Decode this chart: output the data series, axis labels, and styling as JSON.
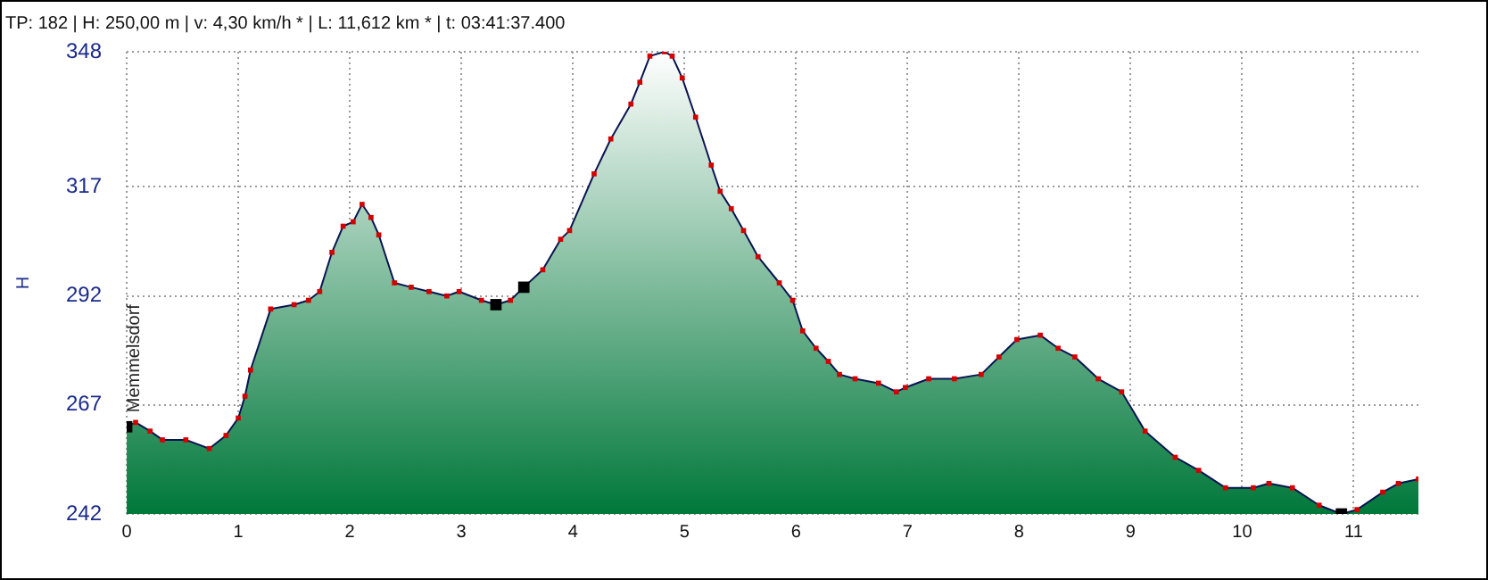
{
  "chart_data": {
    "type": "area",
    "title": "TP: 182 | H: 250,00 m | v: 4,30 km/h * | L: 11,612 km * | t: 03:41:37.400",
    "ylabel": "H",
    "xlim": [
      0,
      11.58
    ],
    "xticks": [
      0,
      1,
      2,
      3,
      4,
      5,
      6,
      7,
      8,
      9,
      10,
      11
    ],
    "ylim": [
      242,
      348
    ],
    "yticks": [
      242,
      267,
      292,
      317,
      348
    ],
    "grid": true,
    "marker": "square",
    "legend": false,
    "annotations": [
      {
        "text": "Memmelsdorf",
        "x": 0,
        "y": 262
      }
    ],
    "series": [
      {
        "color": "#d40000",
        "x": [
          0,
          0.08,
          0.21,
          0.32,
          0.53,
          0.74,
          0.89,
          1.0,
          1.06,
          1.11,
          1.29,
          1.5,
          1.63,
          1.73,
          1.84,
          1.94,
          2.03,
          2.11,
          2.19,
          2.26,
          2.4,
          2.55,
          2.71,
          2.87,
          2.98,
          3.18,
          3.31,
          3.44,
          3.56,
          3.73,
          3.89,
          3.97,
          4.19,
          4.34,
          4.52,
          4.6,
          4.69,
          4.82,
          4.89,
          4.98,
          5.1,
          5.24,
          5.32,
          5.42,
          5.53,
          5.66,
          5.85,
          5.97,
          6.06,
          6.18,
          6.29,
          6.39,
          6.53,
          6.74,
          6.9,
          6.98,
          7.19,
          7.42,
          7.66,
          7.82,
          7.98,
          8.19,
          8.35,
          8.5,
          8.71,
          8.92,
          9.13,
          9.4,
          9.61,
          9.85,
          10.1,
          10.24,
          10.45,
          10.69,
          10.89,
          11.03,
          11.26,
          11.4,
          11.58
        ],
        "values": [
          262,
          263,
          261,
          259,
          259,
          257,
          260,
          264,
          269,
          275,
          289,
          290,
          291,
          293,
          302,
          308,
          309,
          313,
          310,
          306,
          295,
          294,
          293,
          292,
          293,
          291,
          290,
          291,
          294,
          298,
          305,
          307,
          320,
          328,
          336,
          341,
          347,
          348,
          347,
          342,
          333,
          322,
          316,
          312,
          307,
          301,
          295,
          291,
          284,
          280,
          277,
          274,
          273,
          272,
          270,
          271,
          273,
          273,
          274,
          278,
          282,
          283,
          280,
          278,
          273,
          270,
          261,
          255,
          252,
          248,
          248,
          249,
          248,
          244,
          242,
          243,
          247,
          249,
          250
        ]
      },
      {
        "type": "scatter",
        "color": "#000000",
        "x": [
          0,
          3.31,
          3.56,
          10.89
        ],
        "values": [
          262,
          290,
          294,
          242
        ]
      }
    ]
  }
}
